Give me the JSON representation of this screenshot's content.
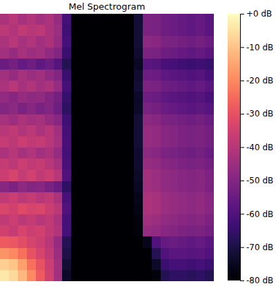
{
  "chart_data": {
    "type": "heatmap",
    "title": "Mel Spectrogram",
    "color": "magma",
    "tick_labels": false,
    "cells": [
      [
        -42,
        -40,
        -43,
        -41,
        -44,
        -42,
        -46,
        -62,
        -80,
        -80,
        -80,
        -80,
        -80,
        -80,
        -80,
        -72,
        -51,
        -52,
        -54,
        -55,
        -56,
        -57,
        -56,
        -58
      ],
      [
        -39,
        -41,
        -38,
        -40,
        -39,
        -42,
        -45,
        -63,
        -80,
        -80,
        -80,
        -80,
        -80,
        -80,
        -80,
        -72,
        -51,
        -52,
        -54,
        -55,
        -56,
        -57,
        -56,
        -58
      ],
      [
        -42,
        -40,
        -43,
        -41,
        -44,
        -42,
        -46,
        -62,
        -80,
        -80,
        -80,
        -80,
        -80,
        -80,
        -80,
        -72,
        -48,
        -49,
        -51,
        -52,
        -53,
        -54,
        -53,
        -55
      ],
      [
        -44,
        -46,
        -43,
        -45,
        -44,
        -47,
        -50,
        -64,
        -80,
        -80,
        -80,
        -80,
        -80,
        -80,
        -80,
        -73,
        -51,
        -52,
        -54,
        -55,
        -56,
        -57,
        -56,
        -58
      ],
      [
        -55,
        -53,
        -56,
        -54,
        -57,
        -55,
        -59,
        -68,
        -80,
        -80,
        -80,
        -80,
        -80,
        -80,
        -80,
        -75,
        -58,
        -59,
        -61,
        -62,
        -63,
        -64,
        -63,
        -65
      ],
      [
        -44,
        -46,
        -43,
        -45,
        -44,
        -47,
        -50,
        -64,
        -80,
        -80,
        -80,
        -80,
        -80,
        -80,
        -80,
        -73,
        -54,
        -55,
        -57,
        -58,
        -59,
        -60,
        -59,
        -61
      ],
      [
        -42,
        -40,
        -43,
        -41,
        -44,
        -42,
        -46,
        -62,
        -80,
        -80,
        -80,
        -80,
        -80,
        -80,
        -80,
        -72,
        -51,
        -52,
        -54,
        -55,
        -56,
        -57,
        -56,
        -58
      ],
      [
        -47,
        -49,
        -46,
        -48,
        -47,
        -50,
        -53,
        -65,
        -80,
        -80,
        -80,
        -80,
        -80,
        -80,
        -80,
        -74,
        -54,
        -55,
        -57,
        -58,
        -59,
        -60,
        -59,
        -61
      ],
      [
        -50,
        -48,
        -51,
        -49,
        -52,
        -50,
        -54,
        -66,
        -80,
        -80,
        -80,
        -80,
        -80,
        -80,
        -80,
        -74,
        -52,
        -53,
        -55,
        -56,
        -57,
        -58,
        -57,
        -59
      ],
      [
        -43,
        -45,
        -42,
        -44,
        -43,
        -46,
        -49,
        -63,
        -80,
        -80,
        -80,
        -80,
        -80,
        -80,
        -80,
        -72,
        -48,
        -49,
        -51,
        -52,
        -53,
        -54,
        -53,
        -55
      ],
      [
        -40,
        -38,
        -41,
        -39,
        -42,
        -40,
        -44,
        -62,
        -80,
        -80,
        -80,
        -80,
        -80,
        -80,
        -80,
        -72,
        -46,
        -47,
        -49,
        -50,
        -51,
        -52,
        -51,
        -53
      ],
      [
        -37,
        -39,
        -36,
        -38,
        -37,
        -40,
        -43,
        -61,
        -80,
        -80,
        -80,
        -80,
        -80,
        -80,
        -80,
        -72,
        -46,
        -47,
        -49,
        -50,
        -51,
        -52,
        -51,
        -53
      ],
      [
        -42,
        -40,
        -43,
        -41,
        -44,
        -42,
        -46,
        -62,
        -80,
        -80,
        -80,
        -80,
        -80,
        -80,
        -80,
        -73,
        -48,
        -49,
        -51,
        -52,
        -53,
        -54,
        -53,
        -55
      ],
      [
        -37,
        -39,
        -36,
        -38,
        -37,
        -40,
        -43,
        -61,
        -80,
        -80,
        -80,
        -80,
        -80,
        -80,
        -80,
        -73,
        -46,
        -47,
        -49,
        -50,
        -51,
        -52,
        -51,
        -53
      ],
      [
        -36,
        -34,
        -37,
        -35,
        -38,
        -36,
        -40,
        -60,
        -80,
        -80,
        -80,
        -80,
        -80,
        -80,
        -80,
        -74,
        -44,
        -45,
        -47,
        -48,
        -49,
        -50,
        -49,
        -51
      ],
      [
        -49,
        -51,
        -48,
        -50,
        -49,
        -52,
        -55,
        -66,
        -80,
        -80,
        -80,
        -80,
        -80,
        -80,
        -80,
        -75,
        -44,
        -45,
        -47,
        -48,
        -49,
        -50,
        -49,
        -51
      ],
      [
        -38,
        -36,
        -39,
        -37,
        -40,
        -38,
        -42,
        -61,
        -80,
        -80,
        -80,
        -80,
        -80,
        -80,
        -80,
        -76,
        -42,
        -43,
        -45,
        -46,
        -47,
        -48,
        -47,
        -49
      ],
      [
        -33,
        -35,
        -32,
        -34,
        -33,
        -36,
        -39,
        -60,
        -80,
        -80,
        -80,
        -80,
        -80,
        -80,
        -80,
        -77,
        -42,
        -43,
        -45,
        -46,
        -47,
        -48,
        -47,
        -49
      ],
      [
        -38,
        -36,
        -39,
        -37,
        -40,
        -38,
        -42,
        -62,
        -80,
        -80,
        -80,
        -80,
        -80,
        -80,
        -80,
        -78,
        -44,
        -45,
        -47,
        -48,
        -49,
        -50,
        -49,
        -51
      ],
      [
        -35,
        -37,
        -34,
        -36,
        -35,
        -38,
        -41,
        -62,
        -80,
        -80,
        -80,
        -80,
        -80,
        -80,
        -80,
        -78,
        -46,
        -47,
        -49,
        -50,
        -51,
        -52,
        -51,
        -53
      ],
      [
        -28,
        -29,
        -31,
        -34,
        -36,
        -40,
        -46,
        -68,
        -80,
        -80,
        -80,
        -80,
        -80,
        -80,
        -80,
        -80,
        -76,
        -60,
        -56,
        -55,
        -56,
        -57,
        -56,
        -58
      ],
      [
        -18,
        -20,
        -24,
        -30,
        -34,
        -38,
        -45,
        -70,
        -80,
        -80,
        -80,
        -80,
        -80,
        -80,
        -80,
        -80,
        -80,
        -68,
        -60,
        -58,
        -58,
        -59,
        -58,
        -60
      ],
      [
        -8,
        -10,
        -16,
        -24,
        -30,
        -36,
        -44,
        -72,
        -80,
        -80,
        -80,
        -80,
        -80,
        -80,
        -80,
        -80,
        -80,
        -74,
        -64,
        -62,
        -62,
        -63,
        -62,
        -64
      ],
      [
        -4,
        -6,
        -12,
        -20,
        -28,
        -35,
        -44,
        -74,
        -80,
        -80,
        -80,
        -80,
        -80,
        -80,
        -80,
        -80,
        -80,
        -78,
        -68,
        -66,
        -66,
        -67,
        -66,
        -68
      ]
    ],
    "colorbar": {
      "range": [
        -80,
        0
      ],
      "ticks": [
        {
          "value": 0,
          "label": "+0 dB"
        },
        {
          "value": -10,
          "label": "-10 dB"
        },
        {
          "value": -20,
          "label": "-20 dB"
        },
        {
          "value": -30,
          "label": "-30 dB"
        },
        {
          "value": -40,
          "label": "-40 dB"
        },
        {
          "value": -50,
          "label": "-50 dB"
        },
        {
          "value": -60,
          "label": "-60 dB"
        },
        {
          "value": -70,
          "label": "-70 dB"
        },
        {
          "value": -80,
          "label": "-80 dB"
        }
      ]
    }
  }
}
